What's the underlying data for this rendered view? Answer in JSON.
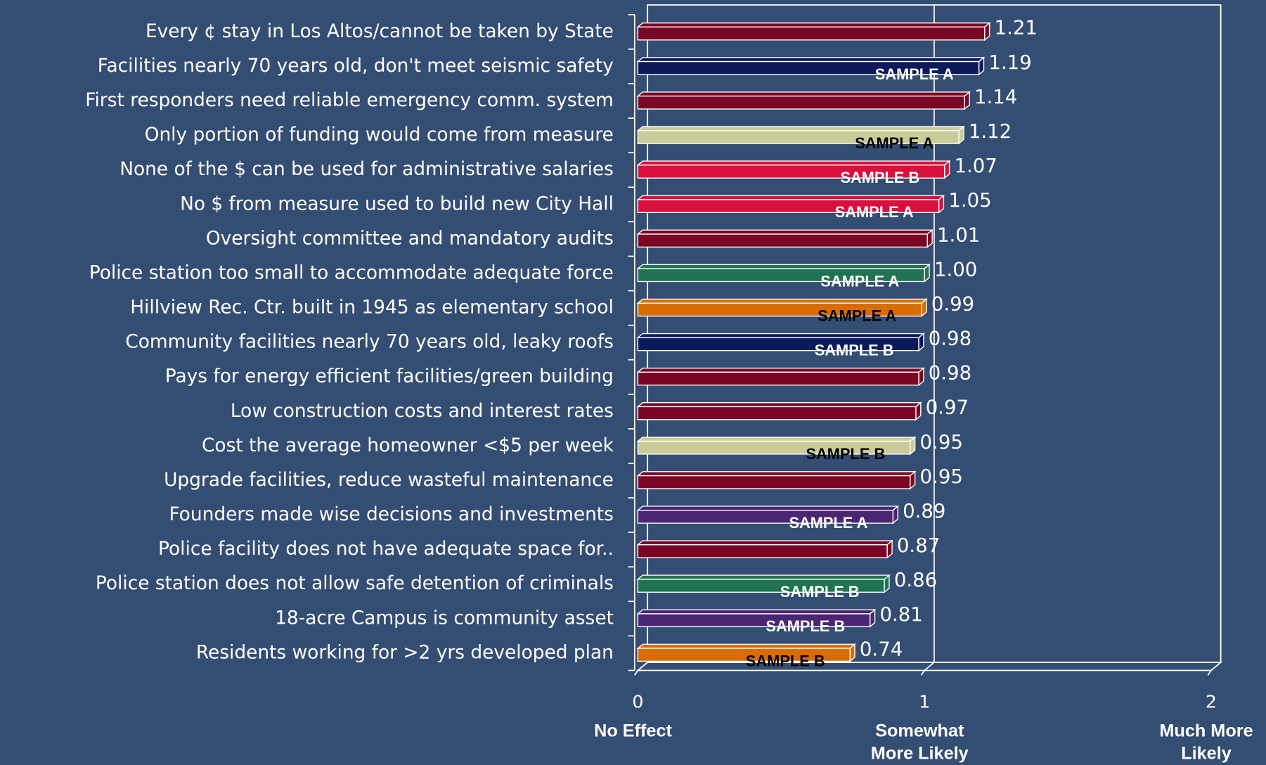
{
  "chart_data": {
    "type": "bar",
    "orientation": "horizontal",
    "categories": [
      "Every ¢ stay in Los Altos/cannot be taken by State",
      "Facilities nearly 70 years old, don't meet seismic safety",
      "First responders need reliable emergency comm. system",
      "Only portion of funding would come from measure",
      "None of the $ can be used for administrative salaries",
      "No $ from measure used to build new City Hall",
      "Oversight committee and mandatory audits",
      "Police station too small to accommodate adequate force",
      "Hillview Rec. Ctr. built in 1945 as elementary school",
      "Community facilities nearly 70 years old, leaky roofs",
      "Pays for energy efficient facilities/green building",
      "Low construction costs and interest rates",
      "Cost the average homeowner <$5 per week",
      "Upgrade facilities, reduce wasteful maintenance",
      "Founders made wise decisions and investments",
      "Police facility does not have adequate space for..",
      "Police station does not allow safe detention of criminals",
      "18-acre Campus is community asset",
      "Residents working for >2 yrs developed plan"
    ],
    "values": [
      1.21,
      1.19,
      1.14,
      1.12,
      1.07,
      1.05,
      1.01,
      1.0,
      0.99,
      0.98,
      0.98,
      0.97,
      0.95,
      0.95,
      0.89,
      0.87,
      0.86,
      0.81,
      0.74
    ],
    "value_labels": [
      "1.21",
      "1.19",
      "1.14",
      "1.12",
      "1.07",
      "1.05",
      "1.01",
      "1.00",
      "0.99",
      "0.98",
      "0.98",
      "0.97",
      "0.95",
      "0.95",
      "0.89",
      "0.87",
      "0.86",
      "0.81",
      "0.74"
    ],
    "colors": [
      "#7a0624",
      "#0c1a5a",
      "#7a0624",
      "#c9cc98",
      "#d8103e",
      "#d8103e",
      "#7a0624",
      "#1f7252",
      "#d96c00",
      "#0c1a5a",
      "#7a0624",
      "#7a0624",
      "#c9cc98",
      "#7a0624",
      "#4b2672",
      "#7a0624",
      "#1f7252",
      "#4b2672",
      "#d96c00"
    ],
    "bar_annotations": [
      null,
      "SAMPLE A",
      null,
      "SAMPLE A",
      "SAMPLE B",
      "SAMPLE A",
      null,
      "SAMPLE A",
      "SAMPLE A",
      "SAMPLE B",
      null,
      null,
      "SAMPLE B",
      null,
      "SAMPLE A",
      null,
      "SAMPLE B",
      "SAMPLE B",
      "SAMPLE B"
    ],
    "bar_annotation_colors": [
      null,
      "#ffffff",
      null,
      "#000000",
      "#ffffff",
      "#ffffff",
      null,
      "#ffffff",
      "#000000",
      "#ffffff",
      null,
      null,
      "#000000",
      null,
      "#ffffff",
      null,
      "#ffffff",
      "#ffffff",
      "#000000"
    ],
    "xlim": [
      0,
      2
    ],
    "xticks": [
      0,
      1,
      2
    ],
    "x_tick_captions": [
      [
        "No Effect"
      ],
      [
        "Somewhat",
        "More Likely"
      ],
      [
        "Much More",
        "Likely"
      ]
    ],
    "grid": true
  }
}
